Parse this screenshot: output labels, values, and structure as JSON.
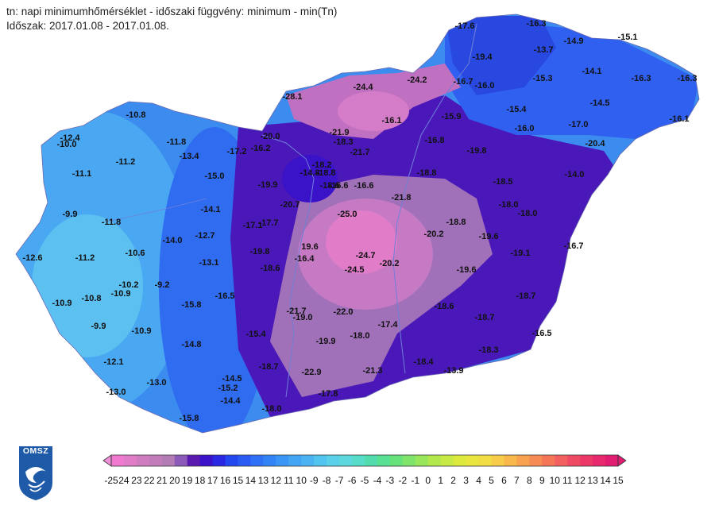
{
  "header": {
    "line1": "tn: napi minimumhőmérséklet - időszaki függvény: minimum - min(Tn)",
    "line2": "Időszak: 2017.01.08 - 2017.01.08."
  },
  "logo": {
    "text": "OMSZ"
  },
  "legend": {
    "ticks": [
      "-25",
      "24",
      "23",
      "22",
      "21",
      "20",
      "19",
      "18",
      "17",
      "16",
      "15",
      "14",
      "13",
      "12",
      "11",
      "10",
      "-9",
      "-8",
      "-7",
      "-6",
      "-5",
      "-4",
      "-3",
      "-2",
      "-1",
      "0",
      "1",
      "2",
      "3",
      "4",
      "5",
      "6",
      "7",
      "8",
      "9",
      "10",
      "11",
      "12",
      "13",
      "14",
      "15"
    ],
    "colors": [
      "#f07ad0",
      "#e07cc8",
      "#d07cc0",
      "#c27cba",
      "#b47cb4",
      "#8c5ab8",
      "#5a1ab0",
      "#3a12c8",
      "#2a28e0",
      "#2448f0",
      "#2a5cf4",
      "#2e70f6",
      "#3284f6",
      "#3a96f6",
      "#42a6f4",
      "#4ab4f2",
      "#52c4f0",
      "#5ad0ea",
      "#5ad8de",
      "#56dcc8",
      "#52dcae",
      "#58e094",
      "#66e27a",
      "#7ee46a",
      "#98e65a",
      "#b2e84c",
      "#c8ea44",
      "#dcea3e",
      "#eae640",
      "#f2de44",
      "#f6cc48",
      "#f8b84c",
      "#f8a250",
      "#f68c54",
      "#f47656",
      "#f26060",
      "#ef4a64",
      "#ec3868",
      "#e8286c",
      "#e01c70"
    ]
  },
  "stations": [
    {
      "v": "-17.6"
    },
    {
      "v": "-16.3"
    },
    {
      "v": "-14.9"
    },
    {
      "v": "-15.1"
    },
    {
      "v": "-19.4"
    },
    {
      "v": "-13.7"
    },
    {
      "v": "-15.3"
    },
    {
      "v": "-14.1"
    },
    {
      "v": "-16.3"
    },
    {
      "v": "-16.3"
    },
    {
      "v": "-24.4"
    },
    {
      "v": "-24.2"
    },
    {
      "v": "-16.7"
    },
    {
      "v": "-16.0"
    },
    {
      "v": "-28.1"
    },
    {
      "v": "-15.4"
    },
    {
      "v": "-14.5"
    },
    {
      "v": "-16.1"
    },
    {
      "v": "-10.8"
    },
    {
      "v": "-16.1"
    },
    {
      "v": "-15.9"
    },
    {
      "v": "-16.0"
    },
    {
      "v": "-17.0"
    },
    {
      "v": "-12.4"
    },
    {
      "v": "-10.0"
    },
    {
      "v": "-11.8"
    },
    {
      "v": "-20.0"
    },
    {
      "v": "-21.9"
    },
    {
      "v": "-18.3"
    },
    {
      "v": "-16.8"
    },
    {
      "v": "-19.8"
    },
    {
      "v": "-20.4"
    },
    {
      "v": "-13.4"
    },
    {
      "v": "-17.2"
    },
    {
      "v": "-16.2"
    },
    {
      "v": "-21.7"
    },
    {
      "v": "-11.1"
    },
    {
      "v": "-11.2"
    },
    {
      "v": "-15.0"
    },
    {
      "v": "-18.2"
    },
    {
      "v": "-14.8"
    },
    {
      "v": "-18.8"
    },
    {
      "v": "-16.6"
    },
    {
      "v": "-18.8"
    },
    {
      "v": "-19.9"
    },
    {
      "v": "-18.6"
    },
    {
      "v": "-16.6"
    },
    {
      "v": "-21.8"
    },
    {
      "v": "-18.5"
    },
    {
      "v": "-14.0"
    },
    {
      "v": "-20.7"
    },
    {
      "v": "-18.0"
    },
    {
      "v": "-9.9"
    },
    {
      "v": "-14.1"
    },
    {
      "v": "-25.0"
    },
    {
      "v": "-18.0"
    },
    {
      "v": "-11.8"
    },
    {
      "v": "-17.1"
    },
    {
      "v": "-17.7"
    },
    {
      "v": "-18.8"
    },
    {
      "v": "-20.2"
    },
    {
      "v": "-19.6"
    },
    {
      "v": "-14.0"
    },
    {
      "v": "-12.7"
    },
    {
      "v": "-16.7"
    },
    {
      "v": "-12.6"
    },
    {
      "v": "-11.2"
    },
    {
      "v": "-10.6"
    },
    {
      "v": "-19.8"
    },
    {
      "v": "19.6"
    },
    {
      "v": "-24.7"
    },
    {
      "v": "-19.1"
    },
    {
      "v": "-13.1"
    },
    {
      "v": "-16.4"
    },
    {
      "v": "-20.2"
    },
    {
      "v": "-18.6"
    },
    {
      "v": "-24.5"
    },
    {
      "v": "-19.6"
    },
    {
      "v": "-10.2"
    },
    {
      "v": "-9.2"
    },
    {
      "v": "-10.9"
    },
    {
      "v": "-10.8"
    },
    {
      "v": "-16.5"
    },
    {
      "v": "-18.7"
    },
    {
      "v": "-10.9"
    },
    {
      "v": "-15.8"
    },
    {
      "v": "-18.6"
    },
    {
      "v": "-21.7"
    },
    {
      "v": "-19.0"
    },
    {
      "v": "-22.0"
    },
    {
      "v": "-18.7"
    },
    {
      "v": "-9.9"
    },
    {
      "v": "-10.9"
    },
    {
      "v": "-17.4"
    },
    {
      "v": "-15.4"
    },
    {
      "v": "-19.9"
    },
    {
      "v": "-18.0"
    },
    {
      "v": "-16.5"
    },
    {
      "v": "-14.8"
    },
    {
      "v": "-18.3"
    },
    {
      "v": "-12.1"
    },
    {
      "v": "-18.7"
    },
    {
      "v": "-18.4"
    },
    {
      "v": "-13.9"
    },
    {
      "v": "-22.9"
    },
    {
      "v": "-21.3"
    },
    {
      "v": "-14.5"
    },
    {
      "v": "-13.0"
    },
    {
      "v": "-15.2"
    },
    {
      "v": "-17.8"
    },
    {
      "v": "-13.0"
    },
    {
      "v": "-14.4"
    },
    {
      "v": "-18.0"
    },
    {
      "v": "-15.8"
    }
  ]
}
